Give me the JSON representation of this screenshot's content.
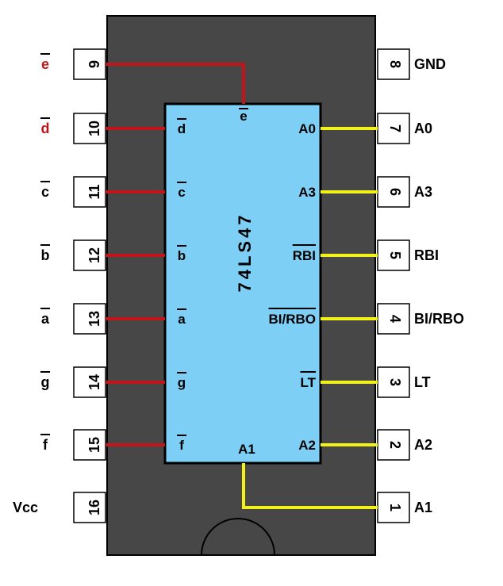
{
  "chip": {
    "part_label": "74LS47",
    "body_color": "#474747",
    "die_color": "#7ecff5",
    "pin_box_color": "#ffffff",
    "left_wire_color": "#c1151b",
    "right_wire_color": "#f2f21a"
  },
  "left_pins": [
    {
      "number": "9",
      "outer_label": "e",
      "inner_label": "e",
      "overbar": true,
      "outer_color": "#c1151b"
    },
    {
      "number": "10",
      "outer_label": "d",
      "inner_label": "d",
      "overbar": true,
      "outer_color": "#c1151b"
    },
    {
      "number": "11",
      "outer_label": "c",
      "inner_label": "c",
      "overbar": true,
      "outer_color": "#000000"
    },
    {
      "number": "12",
      "outer_label": "b",
      "inner_label": "b",
      "overbar": true,
      "outer_color": "#000000"
    },
    {
      "number": "13",
      "outer_label": "a",
      "inner_label": "a",
      "overbar": true,
      "outer_color": "#000000"
    },
    {
      "number": "14",
      "outer_label": "g",
      "inner_label": "g",
      "overbar": true,
      "outer_color": "#000000"
    },
    {
      "number": "15",
      "outer_label": "f",
      "inner_label": "f",
      "overbar": true,
      "outer_color": "#000000"
    },
    {
      "number": "16",
      "outer_label": "Vcc",
      "inner_label": "",
      "overbar": false,
      "outer_color": "#000000"
    }
  ],
  "right_pins": [
    {
      "number": "8",
      "outer_label": "GND",
      "inner_label": "",
      "overbar": false
    },
    {
      "number": "7",
      "outer_label": "A0",
      "inner_label": "A0",
      "overbar": false
    },
    {
      "number": "6",
      "outer_label": "A3",
      "inner_label": "A3",
      "overbar": false
    },
    {
      "number": "5",
      "outer_label": "RBI",
      "inner_label": "RBI",
      "overbar": true
    },
    {
      "number": "4",
      "outer_label": "BI/RBO",
      "inner_label": "BI/RBO",
      "overbar": true
    },
    {
      "number": "3",
      "outer_label": "LT",
      "inner_label": "LT",
      "overbar": true
    },
    {
      "number": "2",
      "outer_label": "A2",
      "inner_label": "A2",
      "overbar": false
    },
    {
      "number": "1",
      "outer_label": "A1",
      "inner_label": "",
      "overbar": false
    }
  ],
  "bottom_inner_label": "A1"
}
